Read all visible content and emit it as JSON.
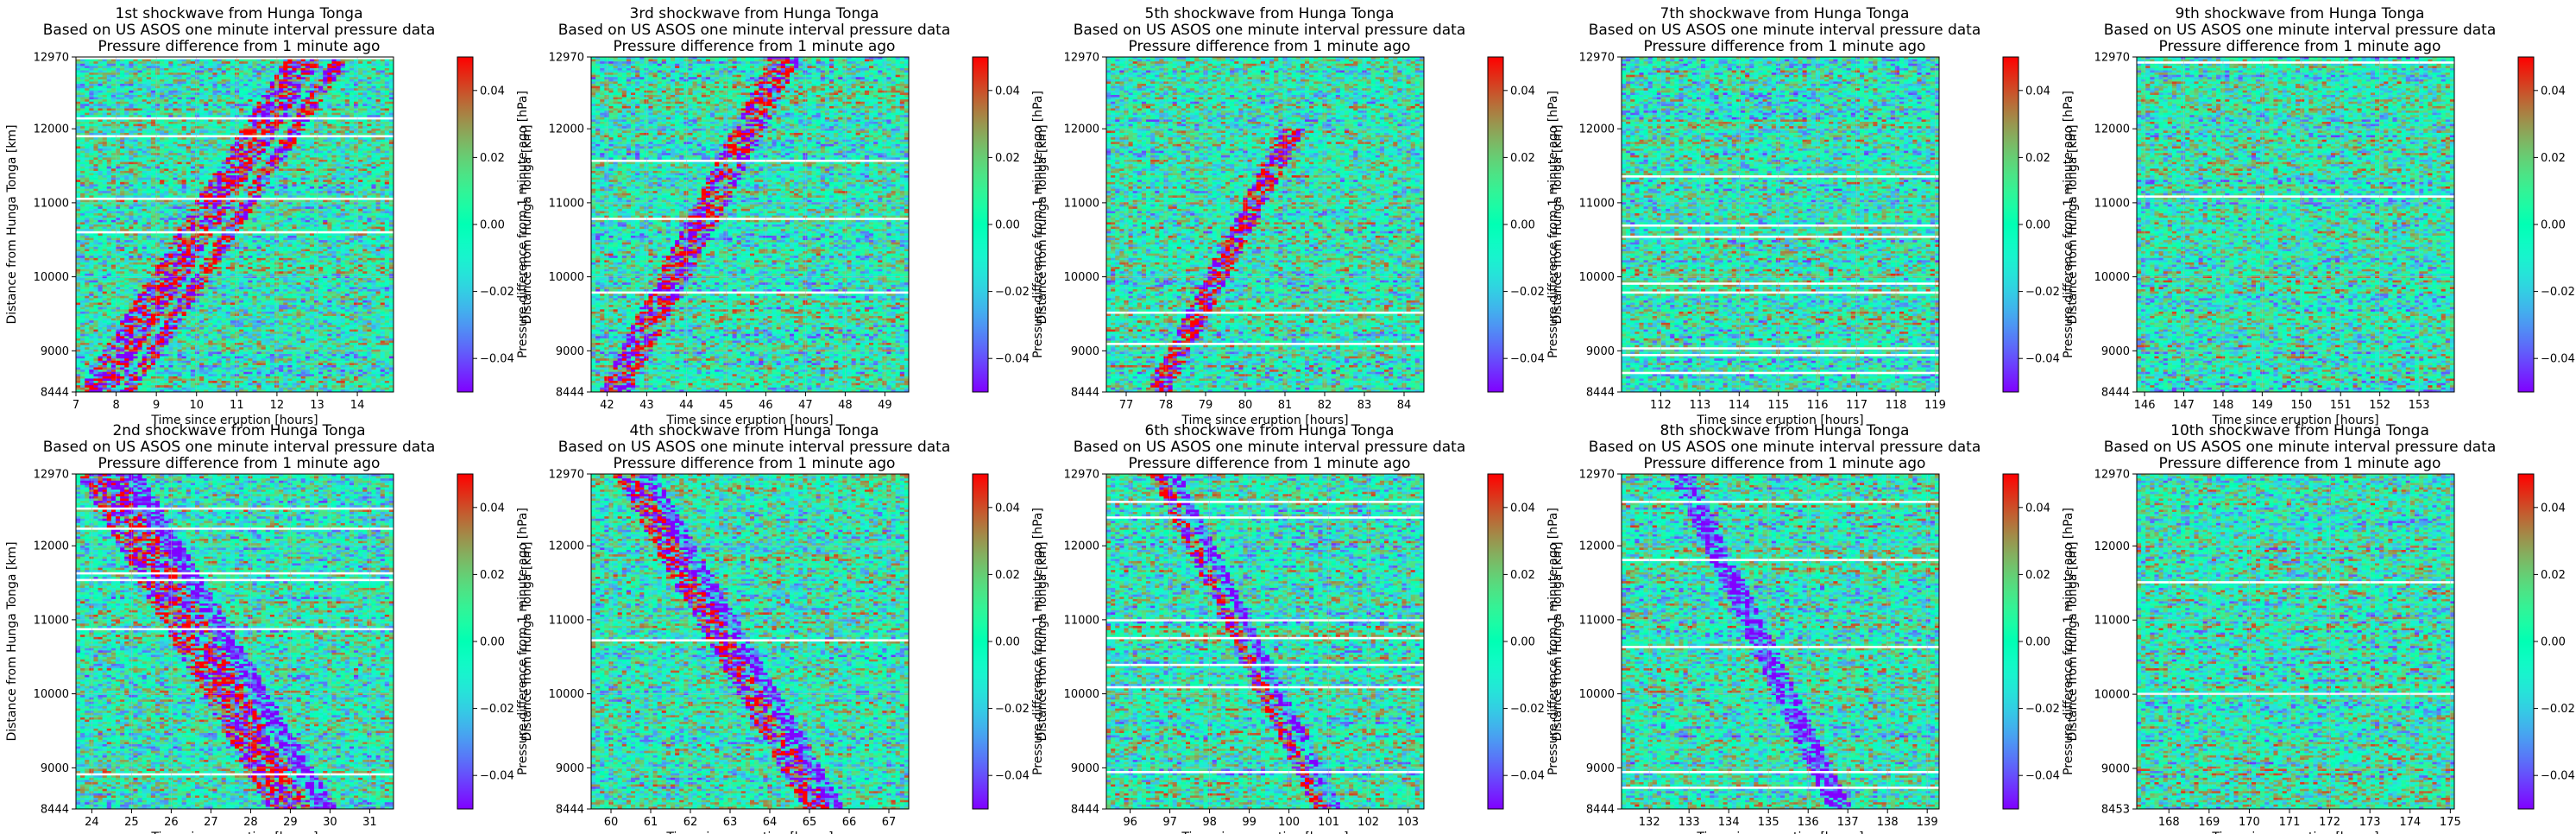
{
  "chart_data": [
    {
      "type": "heatmap",
      "title": "1st shockwave from Hunga Tonga",
      "subtitle": "Based on US ASOS one minute interval pressure data",
      "subtitle2": "Pressure difference from 1 minute ago",
      "xlabel": "Time since eruption [hours]",
      "ylabel": "Distance from Hunga Tonga [km]",
      "colorbar_label": "Pressure difference from 1 minute ago [hPa]",
      "xlim": [
        7,
        14.9
      ],
      "xticks": [
        7,
        8,
        9,
        10,
        11,
        12,
        13,
        14
      ],
      "ylim": [
        8444,
        12970
      ],
      "yticks": [
        8444,
        9000,
        10000,
        11000,
        12000,
        12970
      ],
      "clim": [
        -0.05,
        0.05
      ],
      "cticks": [
        "0.04",
        "0.02",
        "0.00",
        "−0.02",
        "−0.04"
      ],
      "cticks_val": [
        0.04,
        0.02,
        0,
        -0.02,
        -0.04
      ],
      "wave_bands": [
        {
          "from": [
            7.5,
            8444
          ],
          "to": [
            12.7,
            12970
          ],
          "sign": "positive",
          "width_hours": 0.9
        },
        {
          "from": [
            8.3,
            8444
          ],
          "to": [
            13.6,
            12970
          ],
          "sign": "positive",
          "width_hours": 0.4
        }
      ]
    },
    {
      "type": "heatmap",
      "title": "3rd shockwave from Hunga Tonga",
      "subtitle": "Based on US ASOS one minute interval pressure data",
      "subtitle2": "Pressure difference from 1 minute ago",
      "xlabel": "Time since eruption [hours]",
      "ylabel": "Distance from Hunga Tonga [km]",
      "colorbar_label": "Pressure difference from 1 minute ago [hPa]",
      "xlim": [
        41.6,
        49.6
      ],
      "xticks": [
        42,
        43,
        44,
        45,
        46,
        47,
        48,
        49
      ],
      "ylim": [
        8444,
        12970
      ],
      "yticks": [
        8444,
        9000,
        10000,
        11000,
        12000,
        12970
      ],
      "clim": [
        -0.05,
        0.05
      ],
      "cticks": [
        "0.04",
        "0.02",
        "0.00",
        "−0.02",
        "−0.04"
      ],
      "cticks_val": [
        0.04,
        0.02,
        0,
        -0.02,
        -0.04
      ],
      "wave_bands": [
        {
          "from": [
            42.2,
            8444
          ],
          "to": [
            46.5,
            12970
          ],
          "sign": "mixed",
          "width_hours": 0.8
        }
      ]
    },
    {
      "type": "heatmap",
      "title": "5th shockwave from Hunga Tonga",
      "subtitle": "Based on US ASOS one minute interval pressure data",
      "subtitle2": "Pressure difference from 1 minute ago",
      "xlabel": "Time since eruption [hours]",
      "ylabel": "Distance from Hunga Tonga [km]",
      "colorbar_label": "Pressure difference from 1 minute ago [hPa]",
      "xlim": [
        76.5,
        84.5
      ],
      "xticks": [
        77,
        78,
        79,
        80,
        81,
        82,
        83,
        84
      ],
      "ylim": [
        8444,
        12970
      ],
      "yticks": [
        8444,
        9000,
        10000,
        11000,
        12000,
        12970
      ],
      "clim": [
        -0.05,
        0.05
      ],
      "cticks": [
        "0.04",
        "0.02",
        "0.00",
        "−0.02",
        "−0.04"
      ],
      "cticks_val": [
        0.04,
        0.02,
        0,
        -0.02,
        -0.04
      ],
      "wave_bands": [
        {
          "from": [
            77.8,
            8444
          ],
          "to": [
            81.2,
            12000
          ],
          "sign": "mixed",
          "width_hours": 0.6
        }
      ]
    },
    {
      "type": "heatmap",
      "title": "7th shockwave from Hunga Tonga",
      "subtitle": "Based on US ASOS one minute interval pressure data",
      "subtitle2": "Pressure difference from 1 minute ago",
      "xlabel": "Time since eruption [hours]",
      "ylabel": "Distance from Hunga Tonga [km]",
      "colorbar_label": "Pressure difference from 1 minute ago [hPa]",
      "xlim": [
        111,
        119.1
      ],
      "xticks": [
        112,
        113,
        114,
        115,
        116,
        117,
        118,
        119
      ],
      "ylim": [
        8444,
        12970
      ],
      "yticks": [
        8444,
        9000,
        10000,
        11000,
        12000,
        12970
      ],
      "clim": [
        -0.05,
        0.05
      ],
      "cticks": [
        "0.04",
        "0.02",
        "0.00",
        "−0.02",
        "−0.04"
      ],
      "cticks_val": [
        0.04,
        0.02,
        0,
        -0.02,
        -0.04
      ],
      "wave_bands": []
    },
    {
      "type": "heatmap",
      "title": "9th shockwave from Hunga Tonga",
      "subtitle": "Based on US ASOS one minute interval pressure data",
      "subtitle2": "Pressure difference from 1 minute ago",
      "xlabel": "Time since eruption [hours]",
      "ylabel": "Distance from Hunga Tonga [km]",
      "colorbar_label": "Pressure difference from 1 minute ago [hPa]",
      "xlim": [
        145.8,
        153.9
      ],
      "xticks": [
        146,
        147,
        148,
        149,
        150,
        151,
        152,
        153
      ],
      "ylim": [
        8444,
        12970
      ],
      "yticks": [
        8444,
        9000,
        10000,
        11000,
        12000,
        12970
      ],
      "clim": [
        -0.05,
        0.05
      ],
      "cticks": [
        "0.04",
        "0.02",
        "0.00",
        "−0.02",
        "−0.04"
      ],
      "cticks_val": [
        0.04,
        0.02,
        0,
        -0.02,
        -0.04
      ],
      "wave_bands": []
    },
    {
      "type": "heatmap",
      "title": "2nd shockwave from Hunga Tonga",
      "subtitle": "Based on US ASOS one minute interval pressure data",
      "subtitle2": "Pressure difference from 1 minute ago",
      "xlabel": "Time since eruption [hours]",
      "ylabel": "Distance from Hunga Tonga [km]",
      "colorbar_label": "Pressure difference from 1 minute ago [hPa]",
      "xlim": [
        23.6,
        31.6
      ],
      "xticks": [
        24,
        25,
        26,
        27,
        28,
        29,
        30,
        31
      ],
      "ylim": [
        8444,
        12970
      ],
      "yticks": [
        8444,
        9000,
        10000,
        11000,
        12000,
        12970
      ],
      "clim": [
        -0.05,
        0.05
      ],
      "cticks": [
        "0.04",
        "0.02",
        "0.00",
        "−0.02",
        "−0.04"
      ],
      "cticks_val": [
        0.04,
        0.02,
        0,
        -0.02,
        -0.04
      ],
      "wave_bands": [
        {
          "from": [
            24.2,
            12970
          ],
          "to": [
            29.0,
            8444
          ],
          "sign": "positive",
          "width_hours": 1.1
        },
        {
          "from": [
            25.0,
            12970
          ],
          "to": [
            29.9,
            8444
          ],
          "sign": "negative",
          "width_hours": 0.5
        }
      ]
    },
    {
      "type": "heatmap",
      "title": "4th shockwave from Hunga Tonga",
      "subtitle": "Based on US ASOS one minute interval pressure data",
      "subtitle2": "Pressure difference from 1 minute ago",
      "xlabel": "Time since eruption [hours]",
      "ylabel": "Distance from Hunga Tonga [km]",
      "colorbar_label": "Pressure difference from 1 minute ago [hPa]",
      "xlim": [
        59.5,
        67.5
      ],
      "xticks": [
        60,
        61,
        62,
        63,
        64,
        65,
        66,
        67
      ],
      "ylim": [
        8444,
        12970
      ],
      "yticks": [
        8444,
        9000,
        10000,
        11000,
        12000,
        12970
      ],
      "clim": [
        -0.05,
        0.05
      ],
      "cticks": [
        "0.04",
        "0.02",
        "0.00",
        "−0.02",
        "−0.04"
      ],
      "cticks_val": [
        0.04,
        0.02,
        0,
        -0.02,
        -0.04
      ],
      "wave_bands": [
        {
          "from": [
            60.4,
            12970
          ],
          "to": [
            65.2,
            8444
          ],
          "sign": "positive",
          "width_hours": 0.7
        },
        {
          "from": [
            60.9,
            12970
          ],
          "to": [
            65.7,
            8444
          ],
          "sign": "negative",
          "width_hours": 0.4
        }
      ]
    },
    {
      "type": "heatmap",
      "title": "6th shockwave from Hunga Tonga",
      "subtitle": "Based on US ASOS one minute interval pressure data",
      "subtitle2": "Pressure difference from 1 minute ago",
      "xlabel": "Time since eruption [hours]",
      "ylabel": "Distance from Hunga Tonga [km]",
      "colorbar_label": "Pressure difference from 1 minute ago [hPa]",
      "xlim": [
        95.4,
        103.4
      ],
      "xticks": [
        96,
        97,
        98,
        99,
        100,
        101,
        102,
        103
      ],
      "ylim": [
        8444,
        12970
      ],
      "yticks": [
        8444,
        9000,
        10000,
        11000,
        12000,
        12970
      ],
      "clim": [
        -0.05,
        0.05
      ],
      "cticks": [
        "0.04",
        "0.02",
        "0.00",
        "−0.02",
        "−0.04"
      ],
      "cticks_val": [
        0.04,
        0.02,
        0,
        -0.02,
        -0.04
      ],
      "wave_bands": [
        {
          "from": [
            96.7,
            12970
          ],
          "to": [
            100.8,
            8444
          ],
          "sign": "positive",
          "width_hours": 0.35
        },
        {
          "from": [
            97.1,
            12970
          ],
          "to": [
            101.2,
            8444
          ],
          "sign": "negative",
          "width_hours": 0.3
        }
      ]
    },
    {
      "type": "heatmap",
      "title": "8th shockwave from Hunga Tonga",
      "subtitle": "Based on US ASOS one minute interval pressure data",
      "subtitle2": "Pressure difference from 1 minute ago",
      "xlabel": "Time since eruption [hours]",
      "ylabel": "Distance from Hunga Tonga [km]",
      "colorbar_label": "Pressure difference from 1 minute ago [hPa]",
      "xlim": [
        131.3,
        139.3
      ],
      "xticks": [
        132,
        133,
        134,
        135,
        136,
        137,
        138,
        139
      ],
      "ylim": [
        8444,
        12970
      ],
      "yticks": [
        8444,
        9000,
        10000,
        11000,
        12000,
        12970
      ],
      "clim": [
        -0.05,
        0.05
      ],
      "cticks": [
        "0.04",
        "0.02",
        "0.00",
        "−0.02",
        "−0.04"
      ],
      "cticks_val": [
        0.04,
        0.02,
        0,
        -0.02,
        -0.04
      ],
      "wave_bands": [
        {
          "from": [
            132.8,
            12970
          ],
          "to": [
            136.8,
            8444
          ],
          "sign": "negative",
          "width_hours": 0.6
        }
      ]
    },
    {
      "type": "heatmap",
      "title": "10th shockwave from Hunga Tonga",
      "subtitle": "Based on US ASOS one minute interval pressure data",
      "subtitle2": "Pressure difference from 1 minute ago",
      "xlabel": "Time since eruption [hours]",
      "ylabel": "Distance from Hunga Tonga [km]",
      "colorbar_label": "Pressure difference from 1 minute ago [hPa]",
      "xlim": [
        167.2,
        175.1
      ],
      "xticks": [
        168,
        169,
        170,
        171,
        172,
        173,
        174,
        175
      ],
      "ylim": [
        8453,
        12970
      ],
      "yticks": [
        8453,
        9000,
        10000,
        11000,
        12000,
        12970
      ],
      "clim": [
        -0.05,
        0.05
      ],
      "cticks": [
        "0.04",
        "0.02",
        "0.00",
        "−0.02",
        "−0.04"
      ],
      "cticks_val": [
        0.04,
        0.02,
        0,
        -0.02,
        -0.04
      ],
      "wave_bands": []
    }
  ],
  "colormap": "rainbow",
  "colors": {
    "purple": "#7f00ff",
    "blue": "#1f78f0",
    "cyan": "#4cf0e0",
    "green": "#9cf0a0",
    "yellow": "#ffc060",
    "red": "#ff0000"
  }
}
